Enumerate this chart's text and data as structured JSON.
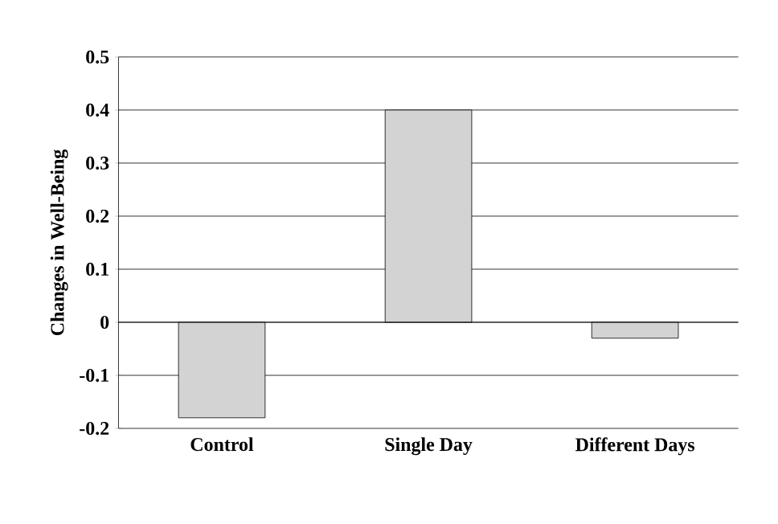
{
  "chart_data": {
    "type": "bar",
    "ylabel": "Changes in Well-Being",
    "categories": [
      "Control",
      "Single Day",
      "Different Days"
    ],
    "values": [
      -0.18,
      0.4,
      -0.03
    ],
    "color": "#d3d3d3",
    "ylim": [
      -0.2,
      0.5
    ],
    "yticks": [
      0.5,
      0.4,
      0.3,
      0.2,
      0.1,
      0,
      -0.1,
      -0.2
    ],
    "grid": "y"
  }
}
